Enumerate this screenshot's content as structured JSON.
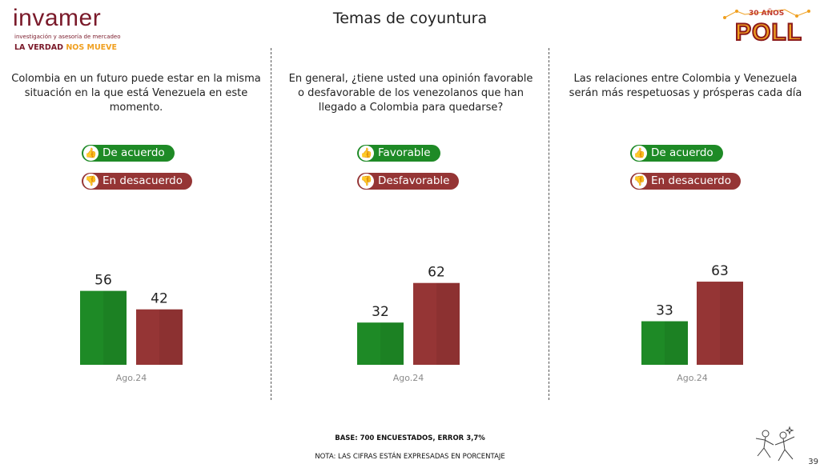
{
  "logo": {
    "name": "invamer",
    "subtitle": "investigación y asesoría de mercadeo",
    "tagline_a": "LA VERDAD",
    "tagline_b": "NOS MUEVE"
  },
  "badge": {
    "years": "30 AÑOS",
    "word": "POLL"
  },
  "title": "Temas de coyuntura",
  "colors": {
    "positive": "#1e8a26",
    "negative": "#953535"
  },
  "panels": [
    {
      "question": "Colombia en un futuro puede estar en la misma situación en la que está Venezuela en este momento.",
      "positive_label": "De acuerdo",
      "negative_label": "En desacuerdo"
    },
    {
      "question": "En general, ¿tiene usted una opinión favorable o desfavorable de los venezolanos que han llegado a Colombia para quedarse?",
      "positive_label": "Favorable",
      "negative_label": "Desfavorable"
    },
    {
      "question": "Las relaciones entre Colombia y Venezuela serán más respetuosas y prósperas cada día",
      "positive_label": "De acuerdo",
      "negative_label": "En desacuerdo"
    }
  ],
  "chart_data": [
    {
      "type": "bar",
      "categories": [
        "Ago.24"
      ],
      "series": [
        {
          "name": "De acuerdo",
          "values": [
            56
          ],
          "color": "#1e8a26"
        },
        {
          "name": "En desacuerdo",
          "values": [
            42
          ],
          "color": "#953535"
        }
      ],
      "ylim": [
        0,
        100
      ],
      "grid": false
    },
    {
      "type": "bar",
      "categories": [
        "Ago.24"
      ],
      "series": [
        {
          "name": "Favorable",
          "values": [
            32
          ],
          "color": "#1e8a26"
        },
        {
          "name": "Desfavorable",
          "values": [
            62
          ],
          "color": "#953535"
        }
      ],
      "ylim": [
        0,
        100
      ],
      "grid": false
    },
    {
      "type": "bar",
      "categories": [
        "Ago.24"
      ],
      "series": [
        {
          "name": "De acuerdo",
          "values": [
            33
          ],
          "color": "#1e8a26"
        },
        {
          "name": "En desacuerdo",
          "values": [
            63
          ],
          "color": "#953535"
        }
      ],
      "ylim": [
        0,
        100
      ],
      "grid": false
    }
  ],
  "footer": {
    "base": "BASE: 700 ENCUESTADOS, ERROR 3,7%",
    "nota": "NOTA: LAS CIFRAS ESTÁN EXPRESADAS EN PORCENTAJE"
  },
  "page_number": "39"
}
